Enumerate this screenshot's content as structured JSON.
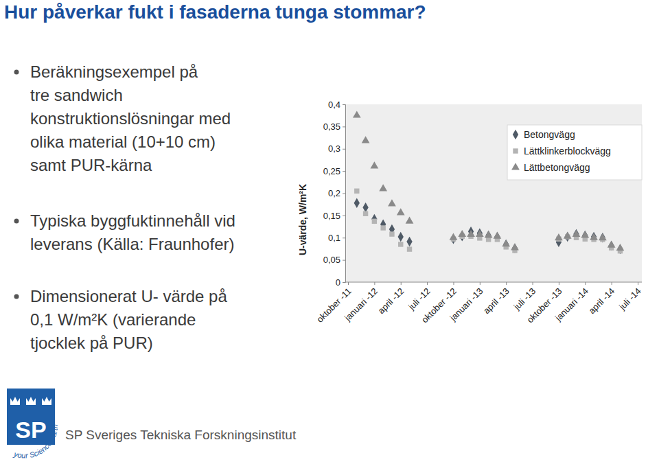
{
  "slide": {
    "title": "Hur påverkar fukt i fasaderna tunga stommar?",
    "bullets": [
      [
        "Beräkningsexempel på",
        "tre sandwich",
        "konstruktionslösningar med",
        "olika material (10+10 cm)",
        "samt PUR-kärna"
      ],
      [
        "Typiska byggfuktinnehåll vid",
        "leverans (Källa: Fraunhofer)"
      ],
      [
        "Dimensionerat U- värde på",
        "0,1 W/m²K (varierande",
        "tjocklek på PUR)"
      ]
    ],
    "logo": {
      "mark": "SP",
      "name": "SP Sveriges Tekniska Forskningsinstitut",
      "tagline": "your Science Partner"
    }
  },
  "chart_data": {
    "type": "scatter",
    "y_label": "U-värde, W/m²K",
    "categories": [
      "oktober -11",
      null,
      null,
      "januari -12",
      null,
      null,
      "april -12",
      null,
      null,
      "juli -12",
      null,
      null,
      "oktober -12",
      null,
      null,
      "januari -13",
      null,
      null,
      "april -13",
      null,
      null,
      "juli -13",
      null,
      null,
      "oktober -13",
      null,
      null,
      "januari -14",
      null,
      null,
      "april -14",
      null,
      null,
      "juli -14"
    ],
    "series": [
      {
        "name": "Betongvägg",
        "color": "#4f5a66",
        "marker": "diamond",
        "values": [
          null,
          0.178,
          0.168,
          0.142,
          0.13,
          0.119,
          0.102,
          0.091,
          null,
          null,
          null,
          null,
          0.097,
          0.103,
          0.114,
          0.11,
          0.105,
          0.102,
          0.085,
          0.076,
          null,
          null,
          null,
          null,
          0.09,
          0.102,
          0.108,
          0.105,
          0.102,
          0.1,
          0.082,
          0.074,
          null,
          null
        ]
      },
      {
        "name": "Lättklinkerblockvägg",
        "color": "#b4b4b4",
        "marker": "square",
        "values": [
          null,
          0.205,
          0.154,
          0.137,
          0.122,
          0.108,
          0.085,
          0.074,
          null,
          null,
          null,
          null,
          0.097,
          0.103,
          0.103,
          0.099,
          0.096,
          0.096,
          0.079,
          0.071,
          null,
          null,
          null,
          null,
          0.097,
          0.102,
          0.1,
          0.097,
          0.096,
          0.096,
          0.077,
          0.07,
          null,
          null
        ]
      },
      {
        "name": "Lättbetongvägg",
        "color": "#8a8a8a",
        "marker": "triangle",
        "values": [
          null,
          0.375,
          0.318,
          0.261,
          0.21,
          0.176,
          0.156,
          0.137,
          null,
          null,
          null,
          null,
          0.1,
          0.107,
          0.107,
          0.107,
          0.105,
          0.103,
          0.085,
          0.077,
          null,
          null,
          null,
          null,
          0.099,
          0.103,
          0.107,
          0.105,
          0.1,
          0.099,
          0.083,
          0.076,
          null,
          null
        ]
      }
    ],
    "ylim": [
      0,
      0.4
    ],
    "yticks": [
      0,
      {
        "value": 0.05,
        "label": "0,05"
      },
      {
        "value": 0.1,
        "label": "0,1"
      },
      {
        "value": 0.15,
        "label": "0,15"
      },
      {
        "value": 0.2,
        "label": "0,2"
      },
      {
        "value": 0.25,
        "label": "0,25"
      },
      {
        "value": 0.3,
        "label": "0,3"
      },
      {
        "value": 0.35,
        "label": "0,35"
      },
      {
        "value": 0.4,
        "label": "0,4"
      }
    ],
    "grid": false,
    "legend": "upper right"
  }
}
